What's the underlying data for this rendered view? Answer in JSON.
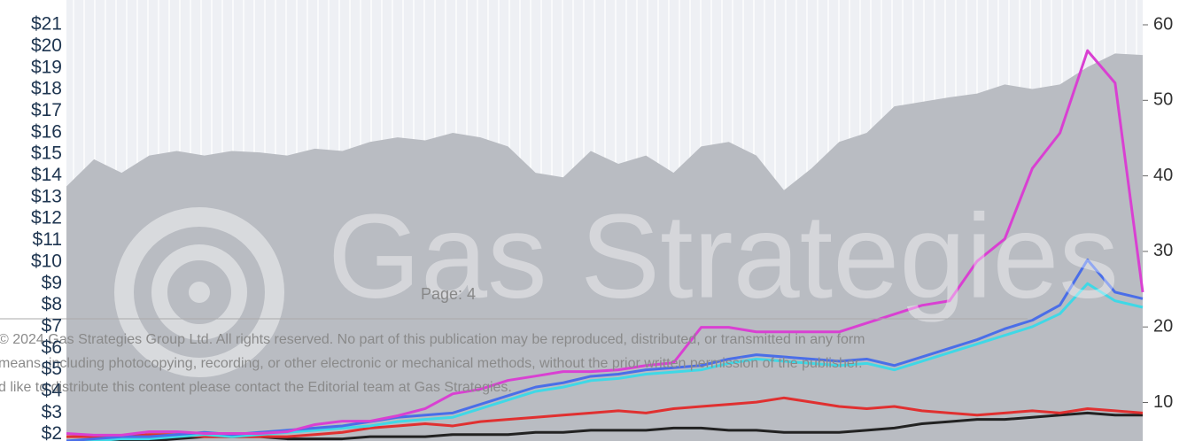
{
  "chart_data": {
    "type": "line",
    "ylim": [
      1.7,
      21
    ],
    "yticks": [
      {
        "value": 2,
        "label": "$2"
      },
      {
        "value": 3,
        "label": "$3"
      },
      {
        "value": 4,
        "label": "$4"
      },
      {
        "value": 5,
        "label": "$5"
      },
      {
        "value": 6,
        "label": "$6"
      },
      {
        "value": 7,
        "label": "$7"
      },
      {
        "value": 8,
        "label": "$8"
      },
      {
        "value": 9,
        "label": "$9"
      },
      {
        "value": 10,
        "label": "$10"
      },
      {
        "value": 11,
        "label": "$11"
      },
      {
        "value": 12,
        "label": "$12"
      },
      {
        "value": 13,
        "label": "$13"
      },
      {
        "value": 14,
        "label": "$14"
      },
      {
        "value": 15,
        "label": "$15"
      },
      {
        "value": 16,
        "label": "$16"
      },
      {
        "value": 17,
        "label": "$17"
      },
      {
        "value": 18,
        "label": "$18"
      },
      {
        "value": 19,
        "label": "$19"
      },
      {
        "value": 20,
        "label": "$20"
      },
      {
        "value": 21,
        "label": "$21"
      }
    ],
    "y2lim": [
      4.9,
      60
    ],
    "y2ticks": [
      10,
      20,
      30,
      40,
      50,
      60
    ],
    "series": [
      {
        "type": "area",
        "axis": "y2",
        "color": "#b9bcc2",
        "values": [
          38.6,
          42.2,
          40.4,
          42.7,
          43.3,
          42.7,
          43.3,
          43.1,
          42.7,
          43.6,
          43.3,
          44.5,
          45.1,
          44.7,
          45.7,
          45.1,
          43.9,
          40.4,
          39.8,
          43.3,
          41.6,
          42.7,
          40.4,
          43.9,
          44.5,
          42.7,
          38.1,
          41.0,
          44.5,
          45.7,
          49.2,
          49.8,
          50.4,
          50.9,
          52.1,
          51.5,
          52.1,
          54.4,
          56.2,
          56.0
        ]
      },
      {
        "color": "#222222",
        "values": [
          1.6,
          1.7,
          1.7,
          1.7,
          1.8,
          1.9,
          1.9,
          1.9,
          1.8,
          1.8,
          1.8,
          1.9,
          1.9,
          1.9,
          2.0,
          2.0,
          2.0,
          2.1,
          2.1,
          2.2,
          2.2,
          2.2,
          2.3,
          2.3,
          2.2,
          2.2,
          2.1,
          2.1,
          2.1,
          2.2,
          2.3,
          2.5,
          2.6,
          2.7,
          2.7,
          2.8,
          2.9,
          3.0,
          2.9,
          2.9
        ]
      },
      {
        "color": "#e03030",
        "values": [
          1.9,
          1.9,
          1.9,
          2.0,
          2.0,
          1.9,
          1.9,
          1.9,
          1.9,
          2.0,
          2.1,
          2.3,
          2.4,
          2.5,
          2.4,
          2.6,
          2.7,
          2.8,
          2.9,
          3.0,
          3.1,
          3.0,
          3.2,
          3.3,
          3.4,
          3.5,
          3.7,
          3.5,
          3.3,
          3.2,
          3.3,
          3.1,
          3.0,
          2.9,
          3.0,
          3.1,
          3.0,
          3.2,
          3.1,
          3.0
        ]
      },
      {
        "color": "#3fd8e6",
        "values": [
          1.6,
          1.7,
          1.8,
          1.8,
          1.9,
          2.0,
          1.9,
          2.0,
          2.1,
          2.2,
          2.3,
          2.4,
          2.6,
          2.7,
          2.8,
          3.2,
          3.6,
          4.0,
          4.2,
          4.5,
          4.6,
          4.8,
          4.9,
          5.0,
          5.3,
          5.5,
          5.4,
          5.3,
          5.2,
          5.3,
          5.0,
          5.4,
          5.8,
          6.2,
          6.6,
          7.0,
          7.6,
          9.0,
          8.2,
          7.9
        ]
      },
      {
        "color": "#4a6ee8",
        "values": [
          1.7,
          1.8,
          1.9,
          1.9,
          2.0,
          2.1,
          2.0,
          2.1,
          2.2,
          2.3,
          2.4,
          2.6,
          2.8,
          2.9,
          3.0,
          3.4,
          3.8,
          4.2,
          4.4,
          4.7,
          4.8,
          5.0,
          5.1,
          5.2,
          5.5,
          5.7,
          5.6,
          5.5,
          5.4,
          5.5,
          5.2,
          5.6,
          6.0,
          6.4,
          6.9,
          7.3,
          8.0,
          10.1,
          8.6,
          8.3
        ]
      },
      {
        "color": "#d940d2",
        "values": [
          2.05,
          1.97,
          1.97,
          2.13,
          2.13,
          2.05,
          2.05,
          2.05,
          2.13,
          2.46,
          2.62,
          2.62,
          2.87,
          3.2,
          3.89,
          4.1,
          4.51,
          4.71,
          4.92,
          4.92,
          5.0,
          5.2,
          5.33,
          6.97,
          6.97,
          6.76,
          6.76,
          6.76,
          6.76,
          7.17,
          7.58,
          7.99,
          8.2,
          10.04,
          11.07,
          14.34,
          15.98,
          19.8,
          18.3,
          8.6
        ]
      }
    ],
    "annotations": [
      "Gas Strategies",
      "Page: 4",
      "© 2024 Gas Strategies Group Ltd. All rights reserved. No part of this publication may be reproduced, distributed, or transmitted in any form",
      "means, including photocopying, recording, or other electronic or mechanical methods, without the prior written permission of the publisher.",
      "d like to distribute this content please contact the Editorial team at Gas Strategies."
    ]
  }
}
